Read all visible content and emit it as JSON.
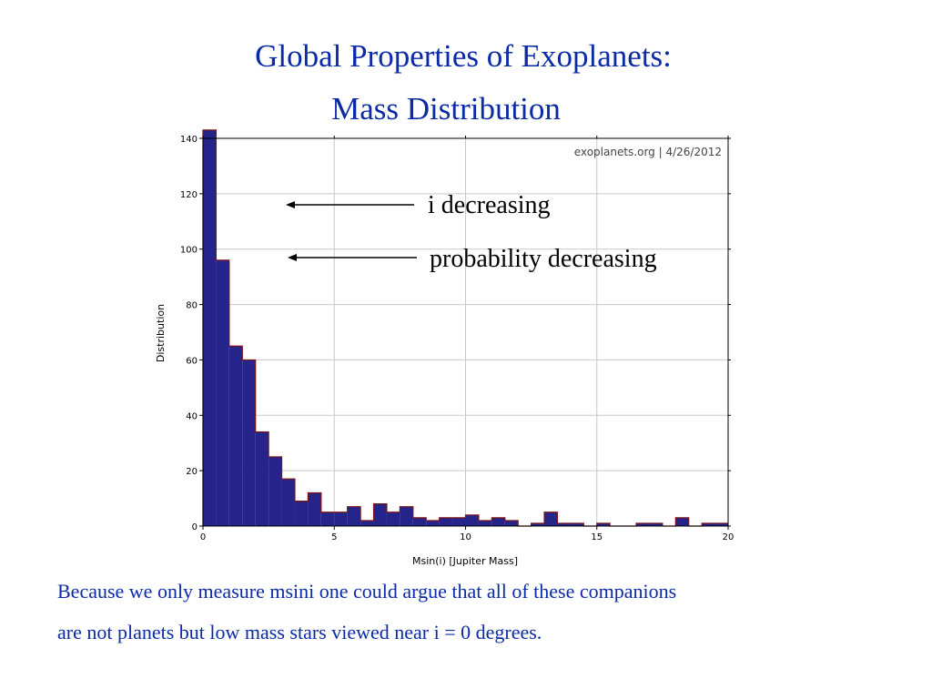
{
  "slide": {
    "title_line_1": "Global Properties of Exoplanets:",
    "title_line_2": "Mass Distribution",
    "annotations": [
      "i decreasing",
      "probability decreasing"
    ],
    "caption_line_1": "Because we only measure msini one could argue that all of these companions",
    "caption_line_2": "are not planets but low mass stars viewed near i = 0 degrees."
  },
  "colors": {
    "title_text": "#0b2aa6",
    "bar_fill": "#25248a",
    "bar_edge": "#7a1515",
    "grid": "#c8c8c8"
  },
  "chart_data": {
    "type": "bar",
    "histogram": true,
    "watermark": "exoplanets.org | 4/26/2012",
    "xlabel": "Msin(i) [Jupiter Mass]",
    "ylabel": "Distribution",
    "xlim": [
      0,
      20
    ],
    "ylim": [
      0,
      140
    ],
    "xticks": [
      0,
      5,
      10,
      15,
      20
    ],
    "yticks": [
      0,
      20,
      40,
      60,
      80,
      100,
      120,
      140
    ],
    "grid": true,
    "bin_width": 0.5,
    "bin_start": 0,
    "values": [
      143,
      96,
      65,
      60,
      34,
      25,
      17,
      9,
      12,
      5,
      5,
      7,
      2,
      8,
      5,
      7,
      3,
      2,
      3,
      3,
      4,
      2,
      3,
      2,
      0,
      1,
      5,
      1,
      1,
      0,
      1,
      0,
      0,
      1,
      1,
      0,
      3,
      0,
      1,
      1
    ]
  }
}
